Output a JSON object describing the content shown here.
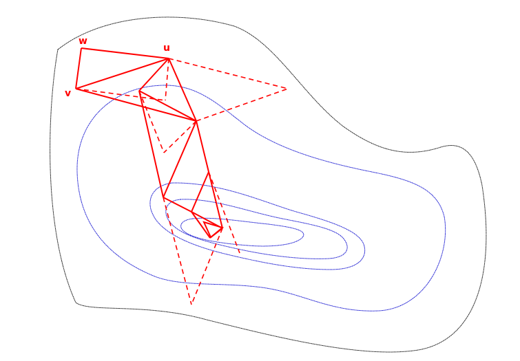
{
  "colors": {
    "background": "#ffffff",
    "boundary": "#000000",
    "contours": "#0000cc",
    "simplex": "#ff0000"
  },
  "labels": {
    "w": "w",
    "u": "u",
    "v": "v"
  }
}
